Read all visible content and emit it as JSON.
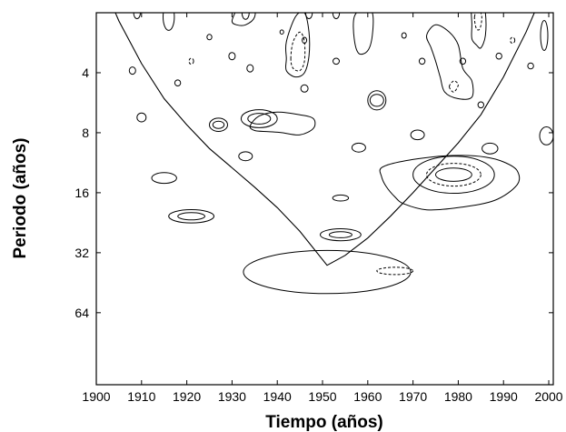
{
  "chart_data": {
    "type": "contour",
    "title": "",
    "xlabel": "Tiempo (años)",
    "ylabel": "Periodo (años)",
    "xlim": [
      1900,
      2001
    ],
    "ylim_log2": [
      1,
      7.2
    ],
    "x_ticks": [
      {
        "value": 1900,
        "label": "1900"
      },
      {
        "value": 1910,
        "label": "1910"
      },
      {
        "value": 1920,
        "label": "1920"
      },
      {
        "value": 1930,
        "label": "1930"
      },
      {
        "value": 1940,
        "label": "1940"
      },
      {
        "value": 1950,
        "label": "1950"
      },
      {
        "value": 1960,
        "label": "1960"
      },
      {
        "value": 1970,
        "label": "1970"
      },
      {
        "value": 1980,
        "label": "1980"
      },
      {
        "value": 1990,
        "label": "1990"
      },
      {
        "value": 2000,
        "label": "2000"
      }
    ],
    "y_ticks": [
      {
        "value": 4,
        "label": "4"
      },
      {
        "value": 8,
        "label": "8"
      },
      {
        "value": 16,
        "label": "16"
      },
      {
        "value": 32,
        "label": "32"
      },
      {
        "value": 64,
        "label": "64"
      }
    ],
    "cone_of_influence": {
      "x": [
        1900,
        1905,
        1910,
        1915,
        1920,
        1925,
        1930,
        1935,
        1940,
        1945,
        1951,
        1955,
        1960,
        1965,
        1970,
        1975,
        1980,
        1985,
        1990,
        1995,
        2001
      ],
      "period": [
        1.2,
        2.2,
        3.6,
        5.4,
        7.3,
        9.6,
        12,
        15,
        19,
        25,
        37,
        33,
        27,
        21,
        16,
        12,
        9,
        6.5,
        4.2,
        2.5,
        1.2
      ]
    },
    "contours": [
      {
        "x": 1951,
        "period": 40,
        "width_years": 37,
        "height_log2": 0.72,
        "style": "solid"
      },
      {
        "x": 1966,
        "period": 39.5,
        "width_years": 8,
        "height_log2": 0.12,
        "style": "dashed"
      },
      {
        "x": 1954,
        "period": 26,
        "width_years": 9,
        "height_log2": 0.2,
        "style": "solid"
      },
      {
        "x": 1954,
        "period": 26,
        "width_years": 5,
        "height_log2": 0.1,
        "style": "solid"
      },
      {
        "x": 1921,
        "period": 21,
        "width_years": 10,
        "height_log2": 0.22,
        "style": "solid"
      },
      {
        "x": 1921,
        "period": 21,
        "width_years": 6,
        "height_log2": 0.12,
        "style": "solid"
      },
      {
        "x": 1915,
        "period": 13.5,
        "width_years": 5.5,
        "height_log2": 0.18,
        "style": "solid"
      },
      {
        "x": 1954,
        "period": 17,
        "width_years": 3.5,
        "height_log2": 0.1,
        "style": "solid"
      },
      {
        "x": 1979,
        "period": 13,
        "width_years": 18,
        "height_log2": 0.62,
        "style": "solid"
      },
      {
        "x": 1979,
        "period": 13,
        "width_years": 12,
        "height_log2": 0.38,
        "style": "dashed"
      },
      {
        "x": 1979,
        "period": 13,
        "width_years": 8,
        "height_log2": 0.22,
        "style": "solid"
      },
      {
        "x": 1936,
        "period": 6.8,
        "width_years": 8,
        "height_log2": 0.3,
        "style": "solid"
      },
      {
        "x": 1936,
        "period": 6.8,
        "width_years": 5,
        "height_log2": 0.18,
        "style": "solid"
      },
      {
        "x": 1927,
        "period": 7.3,
        "width_years": 4,
        "height_log2": 0.22,
        "style": "solid"
      },
      {
        "x": 1927,
        "period": 7.3,
        "width_years": 2.5,
        "height_log2": 0.12,
        "style": "solid"
      },
      {
        "x": 1933,
        "period": 10.5,
        "width_years": 3,
        "height_log2": 0.15,
        "style": "solid"
      },
      {
        "x": 1958,
        "period": 9.5,
        "width_years": 3,
        "height_log2": 0.15,
        "style": "solid"
      },
      {
        "x": 1971,
        "period": 8.2,
        "width_years": 3,
        "height_log2": 0.16,
        "style": "solid"
      },
      {
        "x": 1987,
        "period": 9.6,
        "width_years": 3.5,
        "height_log2": 0.18,
        "style": "solid"
      },
      {
        "x": 1999.5,
        "period": 8.3,
        "width_years": 3,
        "height_log2": 0.3,
        "style": "solid"
      },
      {
        "x": 1910,
        "period": 6.7,
        "width_years": 2,
        "height_log2": 0.15,
        "style": "solid"
      },
      {
        "x": 1962,
        "period": 5.5,
        "width_years": 4,
        "height_log2": 0.32,
        "style": "solid"
      },
      {
        "x": 1962,
        "period": 5.5,
        "width_years": 3,
        "height_log2": 0.2,
        "style": "solid"
      },
      {
        "x": 1985,
        "period": 5.8,
        "width_years": 1.3,
        "height_log2": 0.1,
        "style": "solid"
      },
      {
        "x": 1946,
        "period": 4.8,
        "width_years": 1.6,
        "height_log2": 0.12,
        "style": "solid"
      },
      {
        "x": 1918,
        "period": 4.5,
        "width_years": 1.3,
        "height_log2": 0.1,
        "style": "solid"
      },
      {
        "x": 1908,
        "period": 3.9,
        "width_years": 1.4,
        "height_log2": 0.12,
        "style": "solid"
      },
      {
        "x": 1921,
        "period": 3.5,
        "width_years": 1,
        "height_log2": 0.1,
        "style": "dashed"
      },
      {
        "x": 1930,
        "period": 3.3,
        "width_years": 1.4,
        "height_log2": 0.12,
        "style": "solid"
      },
      {
        "x": 1934,
        "period": 3.8,
        "width_years": 1.4,
        "height_log2": 0.12,
        "style": "solid"
      },
      {
        "x": 1953,
        "period": 3.5,
        "width_years": 1.4,
        "height_log2": 0.1,
        "style": "solid"
      },
      {
        "x": 1989,
        "period": 3.3,
        "width_years": 1.3,
        "height_log2": 0.1,
        "style": "solid"
      },
      {
        "x": 1996,
        "period": 3.7,
        "width_years": 1.3,
        "height_log2": 0.1,
        "style": "solid"
      },
      {
        "x": 1972,
        "period": 3.5,
        "width_years": 1.3,
        "height_log2": 0.1,
        "style": "solid"
      },
      {
        "x": 1981,
        "period": 3.5,
        "width_years": 1.3,
        "height_log2": 0.1,
        "style": "solid"
      },
      {
        "x": 1925,
        "period": 2.65,
        "width_years": 1.1,
        "height_log2": 0.09,
        "style": "solid"
      },
      {
        "x": 1946,
        "period": 2.75,
        "width_years": 1,
        "height_log2": 0.1,
        "style": "solid"
      },
      {
        "x": 1941,
        "period": 2.5,
        "width_years": 0.8,
        "height_log2": 0.07,
        "style": "solid"
      },
      {
        "x": 1968,
        "period": 2.6,
        "width_years": 1,
        "height_log2": 0.09,
        "style": "solid"
      },
      {
        "x": 1992,
        "period": 2.75,
        "width_years": 1,
        "height_log2": 0.1,
        "style": "dashed"
      },
      {
        "x": 1909,
        "period": 2.0,
        "width_years": 1.5,
        "height_log2": 0.2,
        "style": "solid"
      },
      {
        "x": 1916,
        "period": 2.1,
        "width_years": 2.5,
        "height_log2": 0.45,
        "style": "solid"
      },
      {
        "x": 1933,
        "period": 2.0,
        "width_years": 1.6,
        "height_log2": 0.22,
        "style": "solid"
      },
      {
        "x": 1947,
        "period": 2.0,
        "width_years": 1.5,
        "height_log2": 0.2,
        "style": "solid"
      },
      {
        "x": 1953,
        "period": 2.0,
        "width_years": 1.5,
        "height_log2": 0.2,
        "style": "solid"
      },
      {
        "x": 1999,
        "period": 2.6,
        "width_years": 1.6,
        "height_log2": 0.5,
        "style": "solid"
      }
    ],
    "irregular_contours": [
      {
        "style": "solid",
        "points": [
          [
            1930,
            2.2
          ],
          [
            1931,
            1.9
          ],
          [
            1932,
            1.5
          ],
          [
            1934,
            1.4
          ],
          [
            1935,
            1.7
          ],
          [
            1935,
            2.1
          ],
          [
            1933,
            2.3
          ],
          [
            1931,
            2.3
          ]
        ]
      },
      {
        "style": "solid",
        "points": [
          [
            1934,
            7.4
          ],
          [
            1936,
            6.6
          ],
          [
            1940,
            6.3
          ],
          [
            1945,
            6.5
          ],
          [
            1948,
            6.8
          ],
          [
            1948,
            7.6
          ],
          [
            1945,
            8.2
          ],
          [
            1941,
            8.0
          ],
          [
            1938,
            7.9
          ],
          [
            1935,
            7.8
          ]
        ]
      },
      {
        "style": "solid",
        "points": [
          [
            1942,
            3.4
          ],
          [
            1942,
            2.8
          ],
          [
            1944,
            2.1
          ],
          [
            1946,
            2.0
          ],
          [
            1947,
            2.5
          ],
          [
            1947,
            3.3
          ],
          [
            1946,
            4.0
          ],
          [
            1944,
            4.2
          ],
          [
            1942,
            3.9
          ]
        ]
      },
      {
        "style": "dashed",
        "points": [
          [
            1943,
            3.4
          ],
          [
            1943.5,
            2.8
          ],
          [
            1945,
            2.5
          ],
          [
            1946,
            2.8
          ],
          [
            1946,
            3.5
          ],
          [
            1945,
            3.9
          ],
          [
            1943.5,
            3.8
          ]
        ]
      },
      {
        "style": "solid",
        "points": [
          [
            1958,
            3.2
          ],
          [
            1957,
            2.7
          ],
          [
            1957,
            2.1
          ],
          [
            1959,
            1.9
          ],
          [
            1961,
            2.0
          ],
          [
            1961,
            2.6
          ],
          [
            1960,
            3.1
          ]
        ]
      },
      {
        "style": "solid",
        "points": [
          [
            1973,
            2.6
          ],
          [
            1975,
            2.3
          ],
          [
            1978,
            2.5
          ],
          [
            1980,
            2.9
          ],
          [
            1981,
            3.8
          ],
          [
            1983,
            4.4
          ],
          [
            1983,
            5.3
          ],
          [
            1980,
            5.4
          ],
          [
            1977,
            5.0
          ],
          [
            1976,
            4.2
          ],
          [
            1975,
            3.5
          ],
          [
            1974,
            3.0
          ]
        ]
      },
      {
        "style": "dashed",
        "points": [
          [
            1978,
            4.7
          ],
          [
            1979,
            4.4
          ],
          [
            1980,
            4.6
          ],
          [
            1979,
            5.0
          ]
        ]
      },
      {
        "style": "solid",
        "points": [
          [
            1983,
            2.3
          ],
          [
            1983,
            1.8
          ],
          [
            1985,
            1.6
          ],
          [
            1986,
            2.0
          ],
          [
            1986,
            2.6
          ],
          [
            1985,
            3.0
          ],
          [
            1984,
            2.9
          ],
          [
            1983,
            2.7
          ]
        ]
      },
      {
        "style": "dashed",
        "points": [
          [
            1983.6,
            2.1
          ],
          [
            1984.4,
            1.9
          ],
          [
            1985.2,
            2.1
          ],
          [
            1984.8,
            2.4
          ],
          [
            1984,
            2.4
          ]
        ]
      },
      {
        "style": "solid",
        "points": [
          [
            1963,
            12
          ],
          [
            1967,
            11.2
          ],
          [
            1974,
            10.6
          ],
          [
            1980,
            10.4
          ],
          [
            1986,
            10.6
          ],
          [
            1990,
            11.2
          ],
          [
            1993,
            12.4
          ],
          [
            1993,
            14.6
          ],
          [
            1988,
            17.5
          ],
          [
            1980,
            19
          ],
          [
            1973,
            19.5
          ],
          [
            1968,
            18.2
          ],
          [
            1966,
            16.8
          ],
          [
            1964,
            14.8
          ],
          [
            1963,
            13.2
          ]
        ]
      },
      {
        "style": "solid",
        "points": [
          [
            1966,
            1.15
          ],
          [
            1968,
            1.15
          ],
          [
            1968.5,
            1.5
          ],
          [
            1967,
            1.8
          ],
          [
            1966,
            1.6
          ]
        ]
      },
      {
        "style": "solid",
        "points": [
          [
            1960,
            1.15
          ],
          [
            1962,
            1.15
          ],
          [
            1962,
            1.4
          ],
          [
            1961,
            1.5
          ],
          [
            1960,
            1.35
          ]
        ]
      }
    ]
  }
}
